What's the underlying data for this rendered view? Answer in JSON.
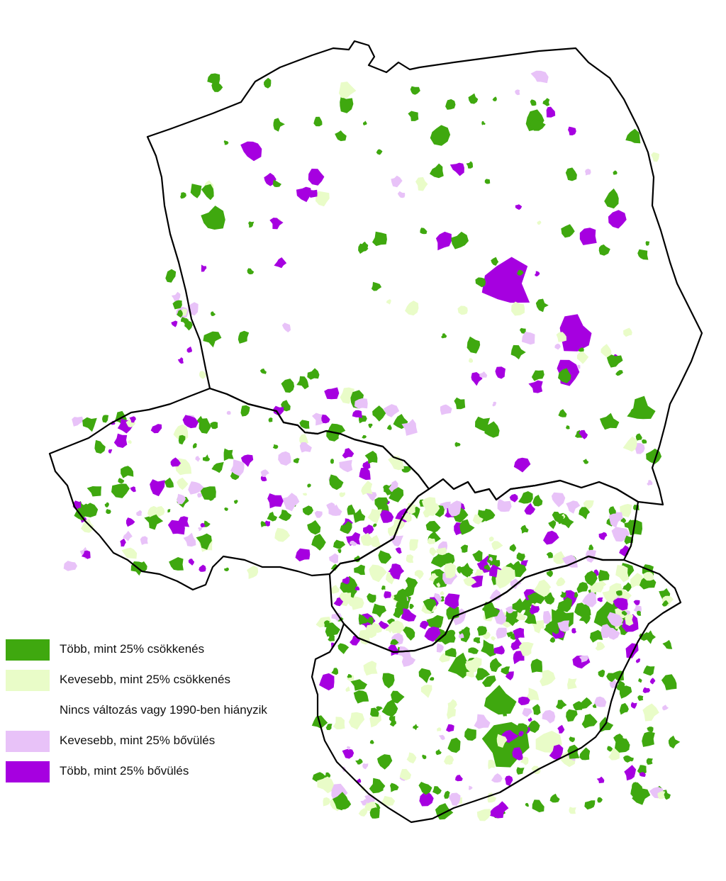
{
  "colors": {
    "strong_decrease": "#3fa80f",
    "weak_decrease": "#e9fcc8",
    "no_change": "#ffffff",
    "weak_increase": "#e8c2f8",
    "strong_increase": "#a600e0",
    "border": "#000000"
  },
  "legend": {
    "items": [
      {
        "label": "Több, mint 25% csökkenés",
        "color": "#3fa80f"
      },
      {
        "label": "Kevesebb, mint 25% csökkenés",
        "color": "#e9fcc8"
      },
      {
        "label": "Nincs változás vagy 1990-ben hiányzik",
        "color": "#ffffff"
      },
      {
        "label": "Kevesebb, mint 25% bővülés",
        "color": "#e8c2f8"
      },
      {
        "label": "Több, mint 25% bővülés",
        "color": "#a600e0"
      }
    ]
  }
}
